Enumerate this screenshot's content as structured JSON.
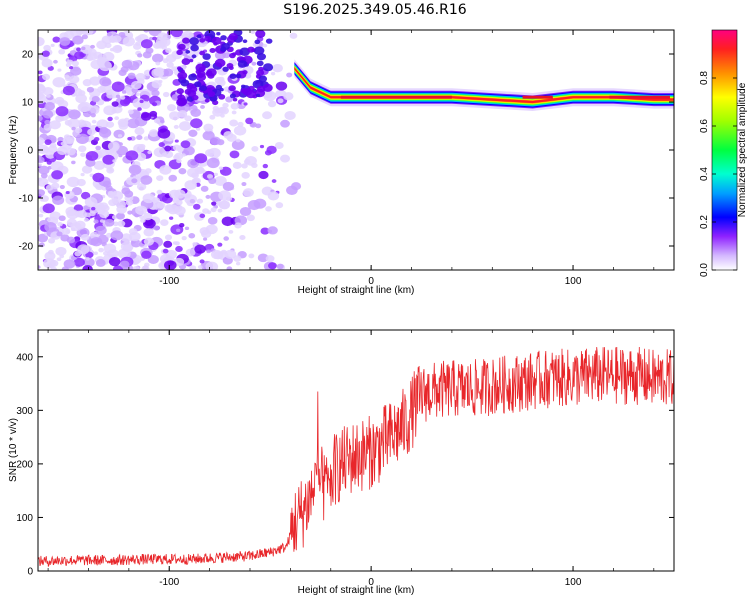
{
  "title": "S196.2025.349.05.46.R16",
  "chart_data": [
    {
      "type": "heatmap",
      "xlabel": "Height of straight line (km)",
      "ylabel": "Frequency (Hz)",
      "xlim": [
        -165,
        150
      ],
      "ylim": [
        -25,
        25
      ],
      "x_ticks": [
        "-100",
        "0",
        "100"
      ],
      "x_tick_values": [
        -100,
        0,
        100
      ],
      "y_ticks": [
        "20",
        "10",
        "0",
        "-10",
        "-20"
      ],
      "y_tick_values": [
        20,
        10,
        0,
        -10,
        -20
      ],
      "colorbar": {
        "label": "Normalized spectral amplitude",
        "range": [
          0,
          1
        ],
        "ticks": [
          "0.0",
          "0.2",
          "0.4",
          "0.6",
          "0.8"
        ],
        "tick_values": [
          0.0,
          0.2,
          0.4,
          0.6,
          0.8
        ],
        "colors": [
          "#ffffff",
          "#c9a8ff",
          "#7a00ff",
          "#0000ff",
          "#00c8ff",
          "#00ff80",
          "#a0ff00",
          "#ffff00",
          "#ff9000",
          "#ff0040",
          "#ff0080"
        ]
      },
      "ridge": {
        "description_points_x": [
          -38,
          -30,
          -20,
          0,
          20,
          40,
          60,
          80,
          100,
          120,
          140,
          150
        ],
        "frequency": [
          17,
          13,
          11,
          11,
          11,
          11,
          10.5,
          10,
          11,
          11,
          10.5,
          10.5
        ]
      }
    },
    {
      "type": "line",
      "xlabel": "Height of straight line (km)",
      "ylabel": "SNR (10 * v/v)",
      "xlim": [
        -165,
        150
      ],
      "ylim": [
        0,
        450
      ],
      "x_ticks": [
        "-100",
        "0",
        "100"
      ],
      "x_tick_values": [
        -100,
        0,
        100
      ],
      "y_ticks": [
        "400",
        "300",
        "200",
        "100",
        "0"
      ],
      "y_tick_values": [
        400,
        300,
        200,
        100,
        0
      ],
      "series": [
        {
          "color": "#e8262a",
          "x": [
            -165,
            -150,
            -130,
            -110,
            -90,
            -70,
            -60,
            -50,
            -42,
            -38,
            -34,
            -30,
            -26,
            -22,
            -18,
            -14,
            -10,
            -6,
            -2,
            2,
            6,
            10,
            14,
            18,
            22,
            26,
            30,
            40,
            50,
            60,
            70,
            80,
            90,
            100,
            110,
            120,
            130,
            140,
            150
          ],
          "values": [
            18,
            20,
            20,
            22,
            22,
            26,
            28,
            35,
            45,
            90,
            110,
            140,
            170,
            150,
            190,
            200,
            210,
            215,
            220,
            225,
            240,
            250,
            265,
            280,
            310,
            330,
            335,
            340,
            340,
            345,
            350,
            355,
            360,
            360,
            365,
            365,
            365,
            360,
            360
          ]
        }
      ]
    }
  ]
}
